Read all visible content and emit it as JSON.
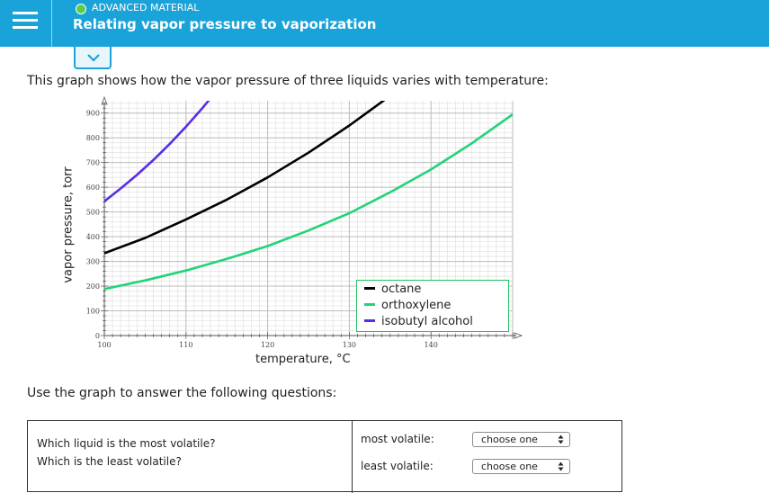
{
  "header": {
    "status_label": "ADVANCED MATERIAL",
    "title": "Relating vapor pressure to vaporization",
    "accent_color": "#1aa3d9",
    "status_color": "#56d04a",
    "menu_icon": "hamburger-menu-icon"
  },
  "collapse_icon": "chevron-down-icon",
  "intro_text": "This graph shows how the vapor pressure of three liquids varies with temperature:",
  "chart_data": {
    "type": "line",
    "xlabel": "temperature,  °C",
    "ylabel": "vapor pressure, torr",
    "xlim": [
      100,
      150
    ],
    "ylim": [
      0,
      950
    ],
    "x_ticks": [
      "100",
      "110",
      "120",
      "130",
      "140"
    ],
    "y_ticks": [
      "0",
      "100",
      "200",
      "300",
      "400",
      "500",
      "600",
      "700",
      "800",
      "900"
    ],
    "grid": true,
    "legend_position": "bottom-right",
    "series": [
      {
        "name": "octane",
        "color": "#000000",
        "x": [
          100,
          105,
          110,
          115,
          120,
          125,
          130,
          135,
          137
        ],
        "y": [
          333,
          395,
          470,
          550,
          640,
          740,
          850,
          970,
          1020
        ]
      },
      {
        "name": "orthoxylene",
        "color": "#22d37a",
        "x": [
          100,
          105,
          110,
          115,
          120,
          125,
          130,
          135,
          140,
          145,
          150
        ],
        "y": [
          188,
          223,
          263,
          310,
          362,
          425,
          495,
          580,
          672,
          778,
          895
        ]
      },
      {
        "name": "isobutyl alcohol",
        "color": "#5a2be8",
        "x": [
          100,
          102,
          104,
          106,
          108,
          110,
          112,
          114,
          115
        ],
        "y": [
          543,
          595,
          650,
          710,
          775,
          845,
          920,
          1000,
          1040
        ]
      }
    ]
  },
  "questions_intro": "Use the graph to answer the following questions:",
  "qa": {
    "q1": "Which liquid is the most volatile?",
    "q2": "Which is the least volatile?",
    "a1_label": "most volatile:",
    "a2_label": "least volatile:",
    "select1_value": "choose one",
    "select2_value": "choose one"
  }
}
